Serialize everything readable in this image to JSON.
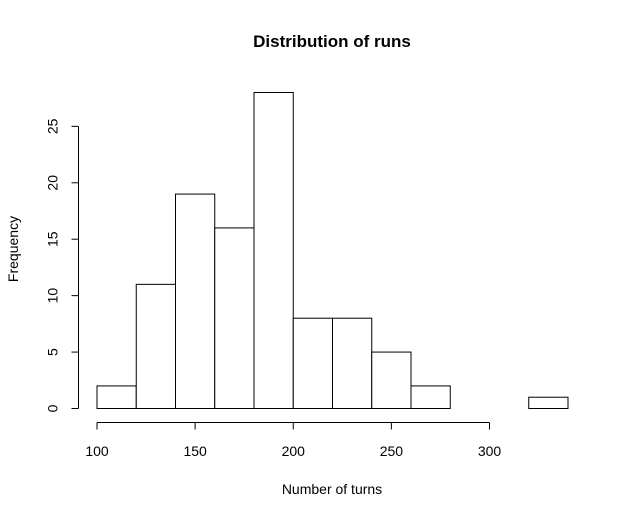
{
  "chart_data": {
    "type": "bar",
    "title": "Distribution of runs",
    "xlabel": "Number of turns",
    "ylabel": "Frequency",
    "bin_edges": [
      100,
      120,
      140,
      160,
      180,
      200,
      220,
      240,
      260,
      280,
      300,
      320,
      340
    ],
    "values": [
      2,
      11,
      19,
      16,
      28,
      8,
      8,
      5,
      2,
      0,
      0,
      1
    ],
    "x_ticks": [
      100,
      150,
      200,
      250,
      300
    ],
    "y_ticks": [
      0,
      5,
      10,
      15,
      20,
      25
    ],
    "xlim": [
      100,
      340
    ],
    "ylim": [
      0,
      28
    ],
    "grid": false,
    "bar_fill": "#ffffff",
    "bar_stroke": "#000000"
  }
}
